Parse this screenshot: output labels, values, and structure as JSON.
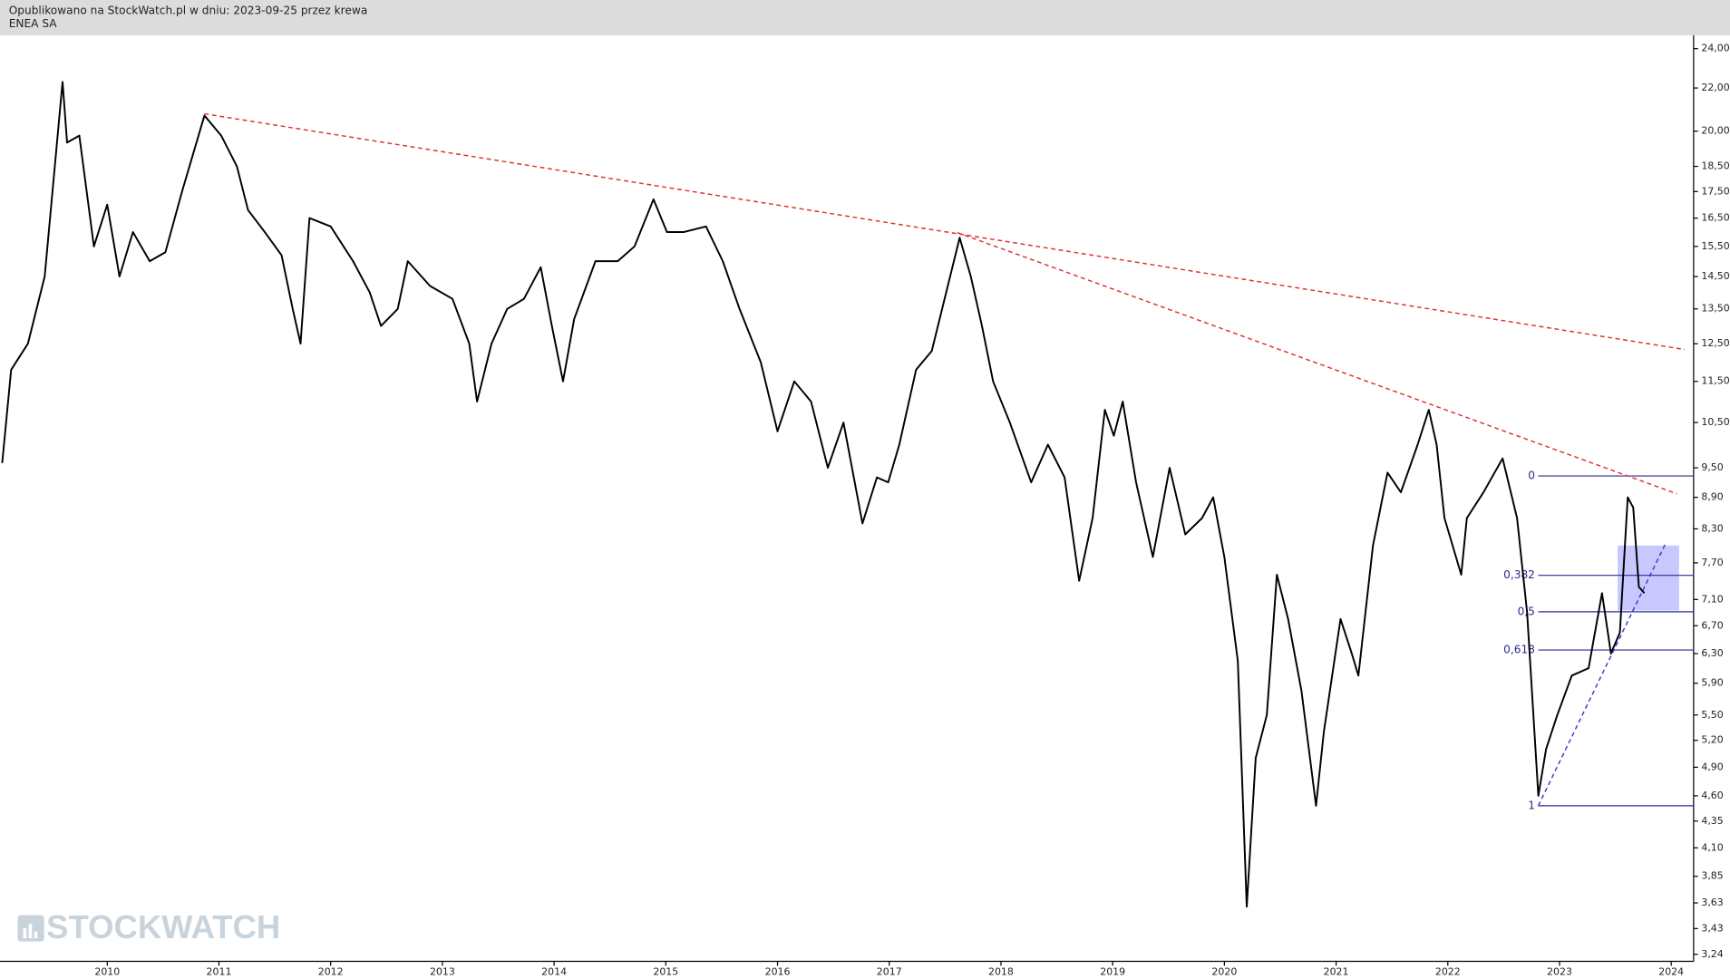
{
  "chart_data": {
    "type": "line",
    "subtitle": "Opublikowano na StockWatch.pl w dniu: 2023-09-25 przez krewa",
    "title": "ENEA SA",
    "watermark": "STOCKWATCH",
    "log_y": true,
    "color": "#000000",
    "xlim": [
      2009.04,
      2024.2
    ],
    "ylim": [
      3.19,
      24.6
    ],
    "xticks": [
      2010,
      2011,
      2012,
      2013,
      2014,
      2015,
      2016,
      2017,
      2018,
      2019,
      2020,
      2021,
      2022,
      2023,
      2024
    ],
    "yticks": [
      {
        "value": 24,
        "label": "24,00"
      },
      {
        "value": 22,
        "label": "22,00"
      },
      {
        "value": 20,
        "label": "20,00"
      },
      {
        "value": 18.5,
        "label": "18,50"
      },
      {
        "value": 17.5,
        "label": "17,50"
      },
      {
        "value": 16.5,
        "label": "16,50"
      },
      {
        "value": 15.5,
        "label": "15,50"
      },
      {
        "value": 14.5,
        "label": "14,50"
      },
      {
        "value": 13.5,
        "label": "13,50"
      },
      {
        "value": 12.5,
        "label": "12,50"
      },
      {
        "value": 11.5,
        "label": "11,50"
      },
      {
        "value": 10.5,
        "label": "10,50"
      },
      {
        "value": 9.5,
        "label": "9,50"
      },
      {
        "value": 8.9,
        "label": "8,90"
      },
      {
        "value": 8.3,
        "label": "8,30"
      },
      {
        "value": 7.7,
        "label": "7,70"
      },
      {
        "value": 7.1,
        "label": "7,10"
      },
      {
        "value": 6.7,
        "label": "6,70"
      },
      {
        "value": 6.3,
        "label": "6,30"
      },
      {
        "value": 5.9,
        "label": "5,90"
      },
      {
        "value": 5.5,
        "label": "5,50"
      },
      {
        "value": 5.2,
        "label": "5,20"
      },
      {
        "value": 4.9,
        "label": "4,90"
      },
      {
        "value": 4.6,
        "label": "4,60"
      },
      {
        "value": 4.35,
        "label": "4,35"
      },
      {
        "value": 4.1,
        "label": "4,10"
      },
      {
        "value": 3.85,
        "label": "3,85"
      },
      {
        "value": 3.63,
        "label": "3,63"
      },
      {
        "value": 3.43,
        "label": "3,43"
      },
      {
        "value": 3.24,
        "label": "3,24"
      }
    ],
    "x": [
      2009.06,
      2009.14,
      2009.29,
      2009.44,
      2009.6,
      2009.64,
      2009.75,
      2009.88,
      2010.0,
      2010.11,
      2010.23,
      2010.38,
      2010.52,
      2010.67,
      2010.87,
      2011.02,
      2011.16,
      2011.26,
      2011.41,
      2011.56,
      2011.66,
      2011.73,
      2011.81,
      2012.0,
      2012.2,
      2012.35,
      2012.45,
      2012.6,
      2012.69,
      2012.89,
      2013.09,
      2013.24,
      2013.31,
      2013.44,
      2013.58,
      2013.73,
      2013.88,
      2013.98,
      2014.08,
      2014.18,
      2014.37,
      2014.57,
      2014.72,
      2014.89,
      2015.01,
      2015.16,
      2015.36,
      2015.51,
      2015.66,
      2015.85,
      2016.0,
      2016.15,
      2016.3,
      2016.45,
      2016.59,
      2016.76,
      2016.89,
      2016.99,
      2017.09,
      2017.24,
      2017.38,
      2017.51,
      2017.63,
      2017.73,
      2017.83,
      2017.93,
      2018.08,
      2018.27,
      2018.42,
      2018.57,
      2018.7,
      2018.82,
      2018.93,
      2019.01,
      2019.09,
      2019.21,
      2019.36,
      2019.51,
      2019.65,
      2019.8,
      2019.9,
      2020.0,
      2020.12,
      2020.2,
      2020.28,
      2020.38,
      2020.47,
      2020.57,
      2020.69,
      2020.82,
      2020.89,
      2021.04,
      2021.14,
      2021.2,
      2021.33,
      2021.46,
      2021.58,
      2021.73,
      2021.83,
      2021.9,
      2021.97,
      2022.12,
      2022.17,
      2022.32,
      2022.49,
      2022.62,
      2022.71,
      2022.81,
      2022.88,
      2022.98,
      2023.11,
      2023.26,
      2023.38,
      2023.46,
      2023.54,
      2023.61,
      2023.66,
      2023.71,
      2023.76
    ],
    "values": [
      9.6,
      11.8,
      12.5,
      14.5,
      22.3,
      19.5,
      19.8,
      15.5,
      17.0,
      14.5,
      16.0,
      15.0,
      15.3,
      17.5,
      20.7,
      19.8,
      18.5,
      16.8,
      16.0,
      15.2,
      13.5,
      12.5,
      16.5,
      16.2,
      15.0,
      14.0,
      13.0,
      13.5,
      15.0,
      14.2,
      13.8,
      12.5,
      11.0,
      12.5,
      13.5,
      13.8,
      14.8,
      13.0,
      11.5,
      13.2,
      15.0,
      15.0,
      15.5,
      17.2,
      16.0,
      16.0,
      16.2,
      15.0,
      13.5,
      12.0,
      10.3,
      11.5,
      11.0,
      9.5,
      10.5,
      8.4,
      9.3,
      9.2,
      10.0,
      11.8,
      12.3,
      14.0,
      15.8,
      14.5,
      13.0,
      11.5,
      10.5,
      9.2,
      10.0,
      9.3,
      7.4,
      8.5,
      10.8,
      10.2,
      11.0,
      9.2,
      7.8,
      9.5,
      8.2,
      8.5,
      8.9,
      7.8,
      6.2,
      3.6,
      5.0,
      5.5,
      7.5,
      6.8,
      5.8,
      4.5,
      5.3,
      6.8,
      6.3,
      6.0,
      8.0,
      9.4,
      9.0,
      10.0,
      10.8,
      10.0,
      8.5,
      7.5,
      8.5,
      9.0,
      9.7,
      8.5,
      6.9,
      4.6,
      5.1,
      5.5,
      6.0,
      6.1,
      7.2,
      6.3,
      6.6,
      8.9,
      8.7,
      7.3,
      7.2
    ],
    "trendlines": [
      {
        "x": [
          2010.87,
          2024.12
        ],
        "y": [
          20.78,
          12.34
        ],
        "color": "#e03030"
      },
      {
        "x": [
          2017.61,
          2024.05
        ],
        "y": [
          15.98,
          8.97
        ],
        "color": "#e03030"
      },
      {
        "x": [
          2022.81,
          2023.95
        ],
        "y": [
          4.5,
          8.04
        ],
        "color": "#3a3acc"
      }
    ],
    "zone": {
      "x": [
        2023.52,
        2024.07
      ],
      "y": [
        6.93,
        8.0
      ],
      "color": "#c8c8ff"
    },
    "fib_start": 2022.81,
    "fib_color": "#2a2a90",
    "fib_levels": [
      {
        "label": "0",
        "value": 9.33
      },
      {
        "label": "0,382",
        "value": 7.49
      },
      {
        "label": "0,5",
        "value": 6.91
      },
      {
        "label": "0,618",
        "value": 6.35
      },
      {
        "label": "1",
        "value": 4.5
      }
    ]
  }
}
